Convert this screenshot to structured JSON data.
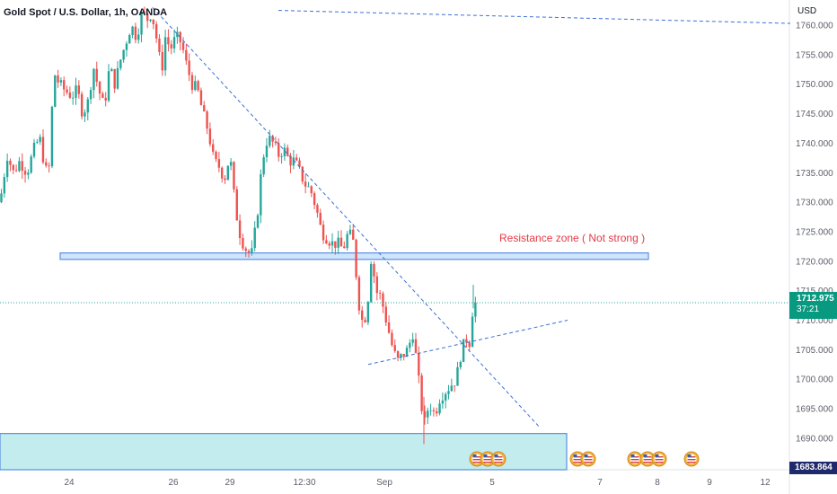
{
  "header": {
    "symbol_title": "Gold Spot / U.S. Dollar, 1h, OANDA",
    "currency": "USD"
  },
  "price_badge": {
    "price": "1712.975",
    "countdown": "37:21",
    "color": "#089981"
  },
  "low_badge": {
    "price": "1683.864",
    "color": "#1e2a6b"
  },
  "annotation": {
    "resistance_label": "Resistance zone ( Not strong )",
    "label_color": "#e53945"
  },
  "colors": {
    "up": "#26a69a",
    "down": "#ef5350",
    "trendline": "#3d6fd6",
    "zone_fill": "#cfe5fb",
    "support_fill": "#c3ecef"
  },
  "chart_data": {
    "type": "candlestick",
    "title": "Gold Spot / U.S. Dollar, 1h, OANDA",
    "y_unit": "USD",
    "y_ticks": [
      1690,
      1695,
      1700,
      1705,
      1710,
      1715,
      1720,
      1725,
      1730,
      1735,
      1740,
      1745,
      1750,
      1755,
      1760
    ],
    "y_tick_labels": [
      "1690.000",
      "1695.000",
      "1700.000",
      "1705.000",
      "1710.000",
      "1715.000",
      "1720.000",
      "1725.000",
      "1730.000",
      "1735.000",
      "1740.000",
      "1745.000",
      "1750.000",
      "1755.000",
      "1760.000"
    ],
    "ylim": [
      1683.5,
      1762.3
    ],
    "x_tick_labels": [
      "24",
      "26",
      "29",
      "12:30",
      "Sep",
      "5",
      "7",
      "8",
      "9",
      "12"
    ],
    "grid": false,
    "close_path": [
      [
        0,
        1730
      ],
      [
        8,
        1738
      ],
      [
        15,
        1735
      ],
      [
        22,
        1737
      ],
      [
        30,
        1735
      ],
      [
        38,
        1739
      ],
      [
        44,
        1741
      ],
      [
        50,
        1736
      ],
      [
        54,
        1734
      ],
      [
        60,
        1752
      ],
      [
        66,
        1750
      ],
      [
        72,
        1749
      ],
      [
        80,
        1748
      ],
      [
        86,
        1749
      ],
      [
        92,
        1745
      ],
      [
        98,
        1747
      ],
      [
        104,
        1753
      ],
      [
        110,
        1749
      ],
      [
        116,
        1746
      ],
      [
        122,
        1753
      ],
      [
        128,
        1750
      ],
      [
        134,
        1754
      ],
      [
        140,
        1757
      ],
      [
        146,
        1760
      ],
      [
        152,
        1758
      ],
      [
        158,
        1762
      ],
      [
        164,
        1761
      ],
      [
        168,
        1762
      ],
      [
        172,
        1760
      ],
      [
        176,
        1756
      ],
      [
        180,
        1752
      ],
      [
        184,
        1758
      ],
      [
        190,
        1756
      ],
      [
        196,
        1758
      ],
      [
        202,
        1757
      ],
      [
        208,
        1753
      ],
      [
        214,
        1750
      ],
      [
        220,
        1749
      ],
      [
        226,
        1745
      ],
      [
        232,
        1742
      ],
      [
        238,
        1737
      ],
      [
        244,
        1736
      ],
      [
        250,
        1734
      ],
      [
        256,
        1738
      ],
      [
        262,
        1729
      ],
      [
        268,
        1724
      ],
      [
        274,
        1722
      ],
      [
        280,
        1721
      ],
      [
        286,
        1727
      ],
      [
        292,
        1737
      ],
      [
        298,
        1741
      ],
      [
        304,
        1740
      ],
      [
        310,
        1738
      ],
      [
        316,
        1739
      ],
      [
        322,
        1737
      ],
      [
        328,
        1737
      ],
      [
        334,
        1735
      ],
      [
        340,
        1733
      ],
      [
        346,
        1732
      ],
      [
        352,
        1729
      ],
      [
        358,
        1725
      ],
      [
        364,
        1724
      ],
      [
        370,
        1723
      ],
      [
        376,
        1723
      ],
      [
        382,
        1722
      ],
      [
        388,
        1725
      ],
      [
        394,
        1723
      ],
      [
        398,
        1715
      ],
      [
        402,
        1710
      ],
      [
        406,
        1710
      ],
      [
        410,
        1714
      ],
      [
        414,
        1722
      ],
      [
        418,
        1715
      ],
      [
        424,
        1714
      ],
      [
        430,
        1710
      ],
      [
        436,
        1706
      ],
      [
        442,
        1703
      ],
      [
        448,
        1704
      ],
      [
        454,
        1705
      ],
      [
        460,
        1708
      ],
      [
        466,
        1700
      ],
      [
        472,
        1692
      ],
      [
        478,
        1696
      ],
      [
        484,
        1694
      ],
      [
        490,
        1697
      ],
      [
        496,
        1698
      ],
      [
        502,
        1699
      ],
      [
        508,
        1700
      ],
      [
        514,
        1705
      ],
      [
        520,
        1707
      ],
      [
        524,
        1706
      ],
      [
        527,
        1714
      ],
      [
        530,
        1712.975
      ]
    ],
    "candle_count": 160,
    "overall_high": 1763,
    "overall_low": 1689,
    "last_close": 1712.975,
    "annotations": [
      {
        "kind": "zone",
        "label": "Resistance zone ( Not strong )",
        "y_range": [
          1720.3,
          1721.4
        ]
      },
      {
        "kind": "zone",
        "label": "",
        "y_range": [
          1683.5,
          1690.8
        ]
      },
      {
        "kind": "trendline",
        "from": [
          170,
          1763
        ],
        "to": [
          600,
          1692
        ]
      },
      {
        "kind": "trendline",
        "from": [
          310,
          1762.5
        ],
        "to": [
          880,
          1760.3
        ]
      },
      {
        "kind": "trendline",
        "from": [
          410,
          1702.5
        ],
        "to": [
          632,
          1710
        ]
      }
    ],
    "event_markers": 9
  }
}
